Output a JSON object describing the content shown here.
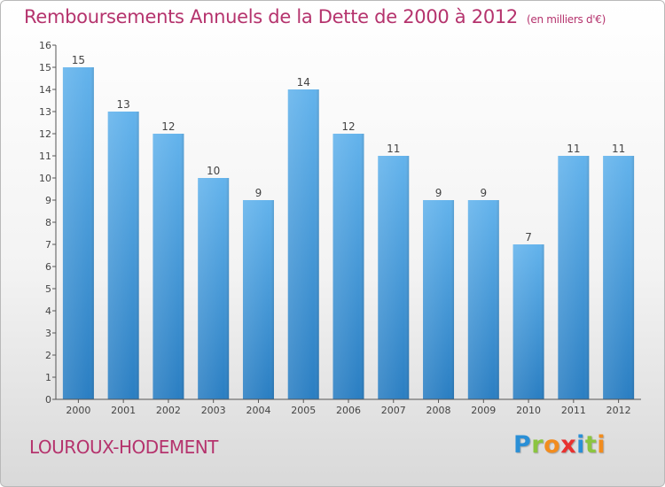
{
  "header": {
    "title": "Remboursements Annuels de la Dette de 2000 à 2012",
    "unit": "(en milliers d'€)"
  },
  "footer": {
    "commune": "LOUROUX-HODEMENT",
    "logo_letters": [
      {
        "ch": "P",
        "color": "#2a8fd6"
      },
      {
        "ch": "r",
        "color": "#8bc53f"
      },
      {
        "ch": "o",
        "color": "#f28c1e"
      },
      {
        "ch": "x",
        "color": "#e8312f"
      },
      {
        "ch": "i",
        "color": "#2a8fd6"
      },
      {
        "ch": "t",
        "color": "#8bc53f"
      },
      {
        "ch": "i",
        "color": "#f28c1e"
      }
    ]
  },
  "chart_data": {
    "type": "bar",
    "title": "Remboursements Annuels de la Dette de 2000 à 2012",
    "subtitle": "(en milliers d'€)",
    "categories": [
      "2000",
      "2001",
      "2002",
      "2003",
      "2004",
      "2005",
      "2006",
      "2007",
      "2008",
      "2009",
      "2010",
      "2011",
      "2012"
    ],
    "values": [
      15,
      13,
      12,
      10,
      9,
      14,
      12,
      11,
      9,
      9,
      7,
      11,
      11
    ],
    "ylim": [
      0,
      16
    ],
    "yticks": [
      0,
      1,
      2,
      3,
      4,
      5,
      6,
      7,
      8,
      9,
      10,
      11,
      12,
      13,
      14,
      15,
      16
    ],
    "grid": false,
    "bar_color_light": "#63b3ec",
    "bar_color_dark": "#2a7ec2",
    "label_color": "#444444"
  }
}
